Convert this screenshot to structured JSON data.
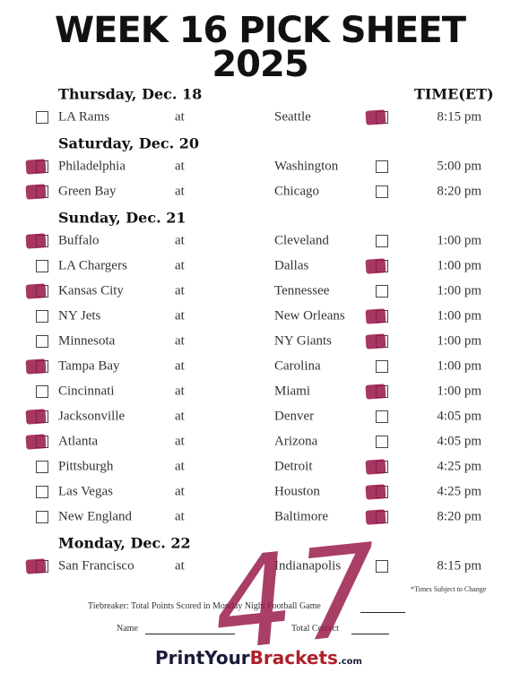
{
  "header": {
    "title": "WEEK 16 PICK SHEET",
    "year": "2025",
    "time_column": "TIME(ET)"
  },
  "days": [
    {
      "label": "Thursday, Dec. 18",
      "games": [
        {
          "away": "LA Rams",
          "at": "at",
          "home": "Seattle",
          "time": "8:15 pm",
          "pick": "home"
        }
      ]
    },
    {
      "label": "Saturday, Dec. 20",
      "games": [
        {
          "away": "Philadelphia",
          "at": "at",
          "home": "Washington",
          "time": "5:00 pm",
          "pick": "away"
        },
        {
          "away": "Green Bay",
          "at": "at",
          "home": "Chicago",
          "time": "8:20 pm",
          "pick": "away"
        }
      ]
    },
    {
      "label": "Sunday, Dec. 21",
      "games": [
        {
          "away": "Buffalo",
          "at": "at",
          "home": "Cleveland",
          "time": "1:00 pm",
          "pick": "away"
        },
        {
          "away": "LA Chargers",
          "at": "at",
          "home": "Dallas",
          "time": "1:00 pm",
          "pick": "home"
        },
        {
          "away": "Kansas City",
          "at": "at",
          "home": "Tennessee",
          "time": "1:00 pm",
          "pick": "away"
        },
        {
          "away": "NY Jets",
          "at": "at",
          "home": "New Orleans",
          "time": "1:00 pm",
          "pick": "home"
        },
        {
          "away": "Minnesota",
          "at": "at",
          "home": "NY Giants",
          "time": "1:00 pm",
          "pick": "home"
        },
        {
          "away": "Tampa Bay",
          "at": "at",
          "home": "Carolina",
          "time": "1:00 pm",
          "pick": "away"
        },
        {
          "away": "Cincinnati",
          "at": "at",
          "home": "Miami",
          "time": "1:00 pm",
          "pick": "home"
        },
        {
          "away": "Jacksonville",
          "at": "at",
          "home": "Denver",
          "time": "4:05 pm",
          "pick": "away"
        },
        {
          "away": "Atlanta",
          "at": "at",
          "home": "Arizona",
          "time": "4:05 pm",
          "pick": "away"
        },
        {
          "away": "Pittsburgh",
          "at": "at",
          "home": "Detroit",
          "time": "4:25 pm",
          "pick": "home"
        },
        {
          "away": "Las Vegas",
          "at": "at",
          "home": "Houston",
          "time": "4:25 pm",
          "pick": "home"
        },
        {
          "away": "New England",
          "at": "at",
          "home": "Baltimore",
          "time": "8:20 pm",
          "pick": "home"
        }
      ]
    },
    {
      "label": "Monday, Dec. 22",
      "games": [
        {
          "away": "San Francisco",
          "at": "at",
          "home": "Indianapolis",
          "time": "8:15 pm",
          "pick": "away"
        }
      ]
    }
  ],
  "footer": {
    "note": "*Times Subject to Change",
    "tiebreaker": "Tiebreaker: Total Points Scored in Monday Night Football Game",
    "tiebreaker_answer": "47",
    "name": "Name",
    "total_correct": "Total Correct",
    "brand": {
      "part1": "PrintYour",
      "part2": "Brackets",
      "suffix": ".com"
    }
  }
}
